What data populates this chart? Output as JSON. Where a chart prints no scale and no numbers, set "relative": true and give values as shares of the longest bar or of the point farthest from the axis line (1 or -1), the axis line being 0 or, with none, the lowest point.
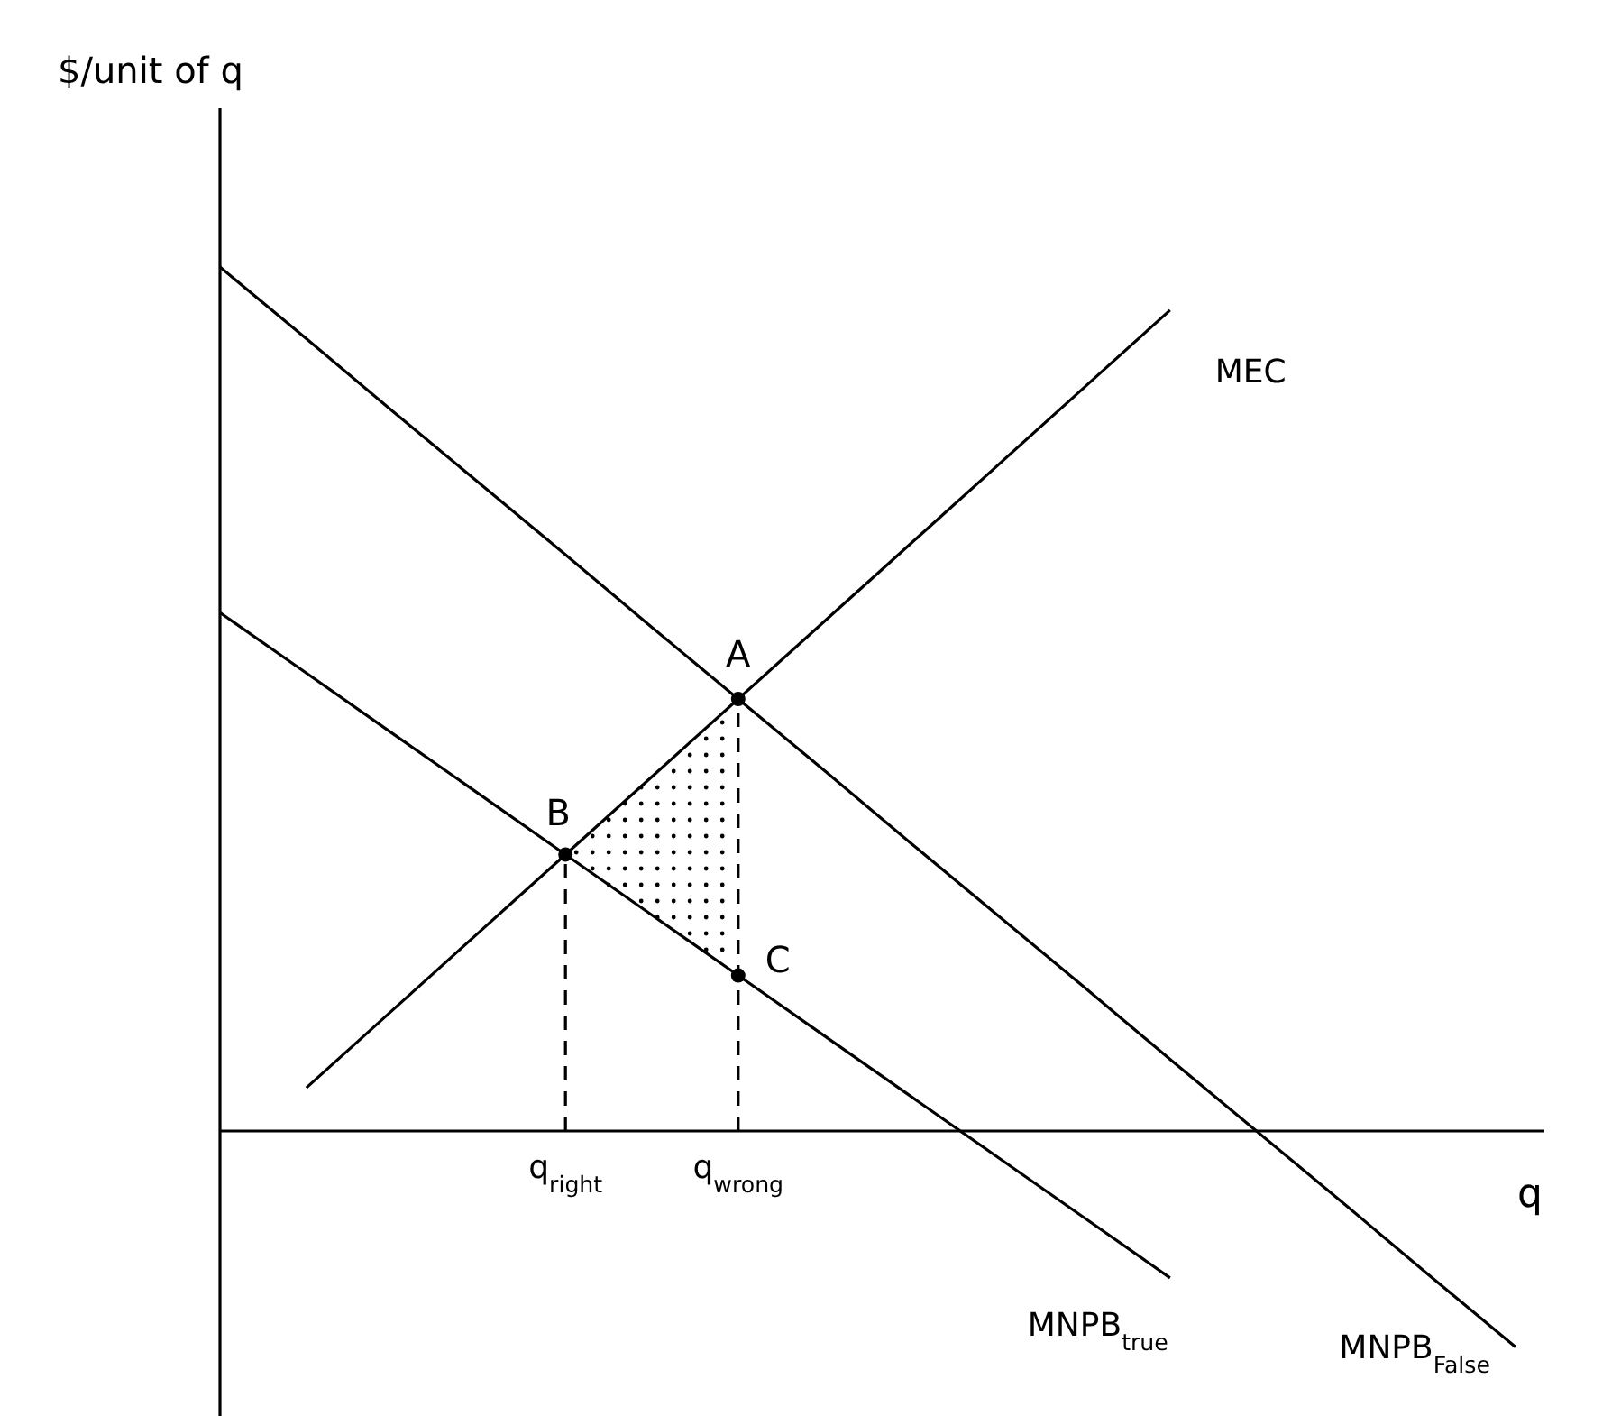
{
  "chart_data": {
    "type": "line",
    "relative": true,
    "xlabel": "q",
    "ylabel": "$/unit of q",
    "tick_labels": "x",
    "categories": [
      null,
      null,
      null,
      null,
      "q$_{right}$",
      null,
      "q$_{wrong}$",
      null,
      null,
      null,
      null,
      null,
      null,
      null,
      null,
      null
    ],
    "series": [
      {
        "name": "MEC",
        "color": "#000000",
        "values": [
          null,
          0.05,
          0.14,
          0.23,
          0.32,
          0.41,
          0.5,
          0.59,
          0.68,
          0.77,
          0.86,
          0.95,
          null,
          null,
          null,
          null
        ]
      },
      {
        "name": "MNPB$_{true}$",
        "color": "#000000",
        "values": [
          0.6,
          0.53,
          0.46,
          0.39,
          0.32,
          0.25,
          0.18,
          0.11,
          0.04,
          -0.03,
          -0.1,
          -0.17,
          null,
          null,
          null,
          null
        ]
      },
      {
        "name": "MNPB$_{False}$",
        "color": "#000000",
        "values": [
          1,
          0.917,
          0.833,
          0.75,
          0.667,
          0.583,
          0.5,
          0.417,
          0.333,
          0.25,
          0.167,
          0.083,
          0,
          -0.083,
          -0.167,
          -0.25
        ]
      },
      {
        "type": "lollipop",
        "color": "#000000",
        "line_style": "dashed",
        "marker": "circle",
        "values": [
          null,
          null,
          null,
          null,
          0.32,
          null,
          0.5,
          null,
          null,
          null,
          null,
          null,
          null,
          null,
          null,
          null
        ]
      },
      {
        "type": "scatter",
        "color": "#000000",
        "marker": "circle",
        "values": [
          null,
          null,
          null,
          null,
          null,
          null,
          0.18,
          null,
          null,
          null,
          null,
          null,
          null,
          null,
          null,
          null
        ]
      }
    ],
    "annotations": [
      {
        "text": "A",
        "x": "q$_{wrong}$",
        "y": 0.5
      },
      {
        "text": "B",
        "x": "q$_{right}$",
        "y": 0.32
      },
      {
        "text": "C",
        "x": "q$_{wrong}$",
        "y": 0.18
      }
    ]
  }
}
